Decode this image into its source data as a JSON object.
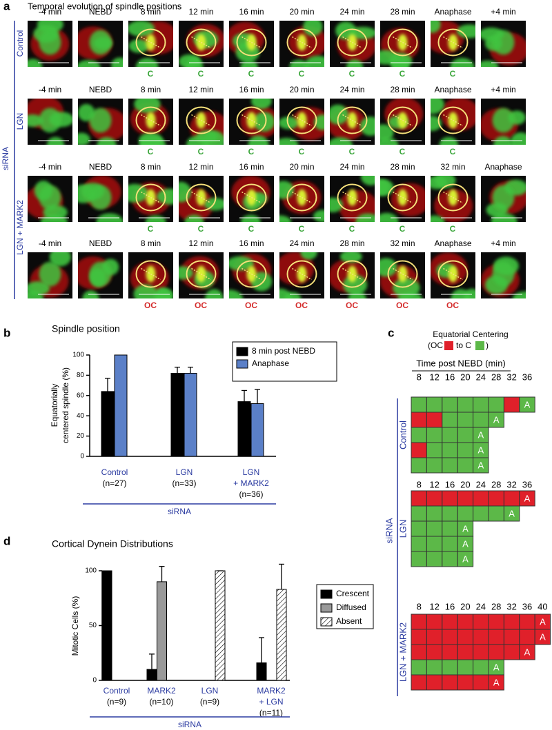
{
  "panel_a": {
    "label": "a",
    "title": "Temporal evolution of spindle positions",
    "group_label": "siRNA",
    "row_labels": [
      "Control",
      "LGN",
      "LGN + MARK2"
    ],
    "status_colors": {
      "C": "#3aa63a",
      "OC": "#d42a2a"
    },
    "rows": [
      {
        "times": [
          "-4 min",
          "NEBD",
          "8 min",
          "12 min",
          "16 min",
          "20 min",
          "24 min",
          "28 min",
          "Anaphase",
          "+4 min"
        ],
        "statuses": [
          "C",
          "C",
          "C",
          "C",
          "C",
          "C",
          "C"
        ]
      },
      {
        "times": [
          "-4 min",
          "NEBD",
          "8 min",
          "12 min",
          "16 min",
          "20 min",
          "24 min",
          "28 min",
          "Anaphase",
          "+4 min"
        ],
        "statuses": [
          "C",
          "C",
          "C",
          "C",
          "C",
          "C",
          "C"
        ]
      },
      {
        "times": [
          "-4 min",
          "NEBD",
          "8 min",
          "12 min",
          "16 min",
          "20 min",
          "24 min",
          "28 min",
          "32 min",
          "Anaphase"
        ],
        "statuses": [
          "C",
          "C",
          "C",
          "C",
          "C",
          "C",
          "C"
        ]
      },
      {
        "times": [
          "-4 min",
          "NEBD",
          "8 min",
          "12 min",
          "16 min",
          "24 min",
          "28 min",
          "32 min",
          "Anaphase",
          "+4 min"
        ],
        "statuses": [
          "OC",
          "OC",
          "OC",
          "OC",
          "OC",
          "OC",
          "OC"
        ]
      }
    ]
  },
  "panel_c": {
    "label": "c",
    "title": "Equatorial Centering",
    "legend": [
      "(OC",
      "to C",
      ")"
    ],
    "axis_title": "Time post NEBD (min)",
    "group_label": "siRNA",
    "anaphase_mark": "A",
    "state_colors": {
      "C": "#5cb848",
      "OC": "#e0202a"
    },
    "groups": [
      {
        "name": "Control",
        "times": [
          8,
          12,
          16,
          20,
          24,
          28,
          32,
          36
        ],
        "rows": [
          {
            "cells": [
              "C",
              "C",
              "C",
              "C",
              "C",
              "C",
              "OC"
            ],
            "anaphase": "C"
          },
          {
            "cells": [
              "OC",
              "OC",
              "C",
              "C",
              "C"
            ],
            "anaphase": "C"
          },
          {
            "cells": [
              "C",
              "C",
              "C",
              "C"
            ],
            "anaphase": "C"
          },
          {
            "cells": [
              "OC",
              "C",
              "C",
              "C"
            ],
            "anaphase": "C"
          },
          {
            "cells": [
              "C",
              "C",
              "C",
              "C"
            ],
            "anaphase": "C"
          }
        ]
      },
      {
        "name": "LGN",
        "times": [
          8,
          12,
          16,
          20,
          24,
          28,
          32,
          36
        ],
        "rows": [
          {
            "cells": [
              "OC",
              "OC",
              "OC",
              "OC",
              "OC",
              "OC",
              "OC"
            ],
            "anaphase": "OC"
          },
          {
            "cells": [
              "C",
              "C",
              "C",
              "C",
              "C",
              "C"
            ],
            "anaphase": "C"
          },
          {
            "cells": [
              "C",
              "C",
              "C"
            ],
            "anaphase": "C"
          },
          {
            "cells": [
              "C",
              "C",
              "C"
            ],
            "anaphase": "C"
          },
          {
            "cells": [
              "C",
              "C",
              "C"
            ],
            "anaphase": "C"
          }
        ]
      },
      {
        "name": "LGN + MARK2",
        "times": [
          8,
          12,
          16,
          20,
          24,
          28,
          32,
          36,
          40
        ],
        "rows": [
          {
            "cells": [
              "OC",
              "OC",
              "OC",
              "OC",
              "OC",
              "OC",
              "OC",
              "OC"
            ],
            "anaphase": "OC"
          },
          {
            "cells": [
              "OC",
              "OC",
              "OC",
              "OC",
              "OC",
              "OC",
              "OC",
              "OC"
            ],
            "anaphase": "OC"
          },
          {
            "cells": [
              "OC",
              "OC",
              "OC",
              "OC",
              "OC",
              "OC",
              "OC"
            ],
            "anaphase": "OC"
          },
          {
            "cells": [
              "C",
              "C",
              "C",
              "C",
              "C"
            ],
            "anaphase": "C"
          },
          {
            "cells": [
              "OC",
              "OC",
              "OC",
              "OC",
              "OC"
            ],
            "anaphase": "OC"
          }
        ]
      }
    ]
  },
  "chart_data": [
    {
      "type": "bar",
      "label": "b",
      "title": "Spindle position",
      "ylabel": [
        "Equatorially",
        "centered  spindle (%)"
      ],
      "categories": [
        [
          "Control"
        ],
        [
          "LGN"
        ],
        [
          "LGN",
          "+ MARK2"
        ]
      ],
      "n_labels": [
        "(n=27)",
        "(n=33)",
        "(n=36)"
      ],
      "xlabel": "siRNA",
      "ylim": [
        0,
        100
      ],
      "yticks": [
        0,
        20,
        40,
        60,
        80,
        100
      ],
      "series": [
        {
          "name": "8 min post NEBD",
          "color": "#000000",
          "values": [
            64,
            82,
            54
          ],
          "errors": [
            13,
            6,
            11
          ]
        },
        {
          "name": "Anaphase",
          "color": "#5b80c8",
          "values": [
            100,
            82,
            52
          ],
          "errors": [
            null,
            6,
            14
          ]
        }
      ]
    },
    {
      "type": "bar",
      "label": "d",
      "title": "Cortical Dynein Distributions",
      "ylabel": [
        "Mitotic Cells (%)"
      ],
      "categories": [
        [
          "Control"
        ],
        [
          "MARK2"
        ],
        [
          "LGN"
        ],
        [
          "MARK2",
          "+ LGN"
        ]
      ],
      "n_labels": [
        "(n=9)",
        "(n=10)",
        "(n=9)",
        "(n=11)"
      ],
      "xlabel": "siRNA",
      "ylim": [
        0,
        100
      ],
      "yticks": [
        0,
        50,
        100
      ],
      "series": [
        {
          "name": "Crescent",
          "color": "#000000",
          "values": [
            100,
            10,
            0,
            16
          ],
          "errors": [
            null,
            14,
            null,
            23
          ]
        },
        {
          "name": "Diffused",
          "color": "#999999",
          "values": [
            0,
            90,
            0,
            0
          ],
          "errors": [
            null,
            14,
            null,
            null
          ]
        },
        {
          "name": "Absent",
          "color": "#ffffff",
          "hatch": true,
          "values": [
            0,
            0,
            100,
            83
          ],
          "errors": [
            null,
            null,
            0,
            23
          ]
        }
      ]
    }
  ]
}
